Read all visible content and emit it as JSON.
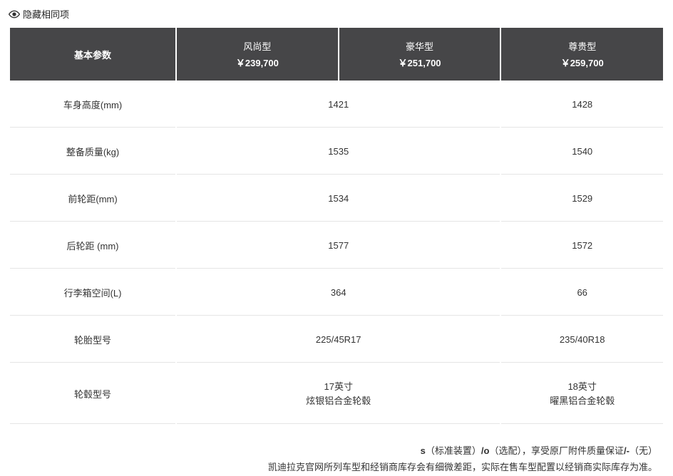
{
  "toggle": {
    "label": "隐藏相同项"
  },
  "header": {
    "param_label": "基本参数",
    "trims": [
      {
        "name": "风尚型",
        "price": "￥239,700"
      },
      {
        "name": "豪华型",
        "price": "￥251,700"
      },
      {
        "name": "尊贵型",
        "price": "￥259,700"
      }
    ]
  },
  "rows": [
    {
      "label": "车身高度(mm)",
      "col1": "1421",
      "col2": "1428"
    },
    {
      "label": "整备质量(kg)",
      "col1": "1535",
      "col2": "1540"
    },
    {
      "label": "前轮距(mm)",
      "col1": "1534",
      "col2": "1529"
    },
    {
      "label": "后轮距 (mm)",
      "col1": "1577",
      "col2": "1572"
    },
    {
      "label": "行李箱空间(L)",
      "col1": "364",
      "col2": "66"
    },
    {
      "label": "轮胎型号",
      "col1": "225/45R17",
      "col2": "235/40R18"
    },
    {
      "label": "轮毂型号",
      "col1": "17英寸\n炫银铝合金轮毂",
      "col2": "18英寸\n曜黑铝合金轮毂"
    }
  ],
  "footnote": {
    "line1_prefix": "s",
    "line1_mid1": "（标准装置）",
    "line1_slash": "/",
    "line1_o": "o",
    "line1_mid2": "（选配），享受原厂附件质量保证",
    "line1_slash2": "/",
    "line1_dash": "-",
    "line1_end": "（无）",
    "line2": "凯迪拉克官网所列车型和经销商库存会有细微差距，实际在售车型配置以经销商实际库存为准。"
  },
  "colors": {
    "header_bg": "#464648",
    "header_fg": "#ffffff",
    "border": "#e5e5e5",
    "text": "#333333",
    "bg": "#ffffff"
  }
}
